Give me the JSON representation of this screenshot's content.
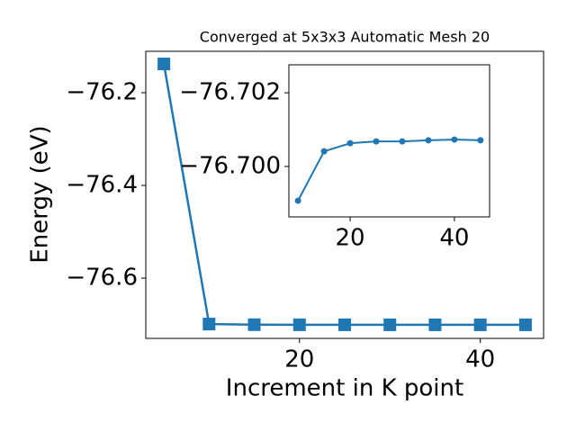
{
  "chart_data": [
    {
      "type": "line",
      "title": "Converged at 5x3x3 Automatic Mesh 20",
      "x_label": "Increment in K point",
      "y_label": "Energy (eV)",
      "x": [
        5,
        10,
        15,
        20,
        25,
        30,
        35,
        40,
        45
      ],
      "series": [
        {
          "color": "#1f77b4",
          "marker": "square",
          "values": [
            -76.138,
            -76.69907,
            -76.70041,
            -76.70063,
            -76.70068,
            -76.70068,
            -76.70071,
            -76.70073,
            -76.70071
          ]
        }
      ],
      "xlim": [
        3,
        47
      ],
      "xticks": [
        20,
        40
      ],
      "ylim": [
        -76.73,
        -76.1107
      ],
      "yticks": [
        {
          "value": -76.6,
          "label": "−76.6"
        },
        {
          "value": -76.4,
          "label": "−76.4"
        },
        {
          "value": -76.2,
          "label": "−76.2"
        }
      ]
    },
    {
      "type": "line",
      "x": [
        10,
        15,
        20,
        25,
        30,
        35,
        40,
        45
      ],
      "series": [
        {
          "color": "#1f77b4",
          "marker": "circle",
          "values": [
            -76.69907,
            -76.70041,
            -76.70063,
            -76.70068,
            -76.70068,
            -76.70071,
            -76.70073,
            -76.70071
          ]
        }
      ],
      "xlim": [
        8.25,
        46.75
      ],
      "xticks": [
        20,
        40
      ],
      "ylim": [
        -76.69863,
        -76.70276
      ],
      "yticks": [
        {
          "value": -76.7,
          "label": "−76.700"
        },
        {
          "value": -76.702,
          "label": "−76.702"
        }
      ]
    }
  ]
}
